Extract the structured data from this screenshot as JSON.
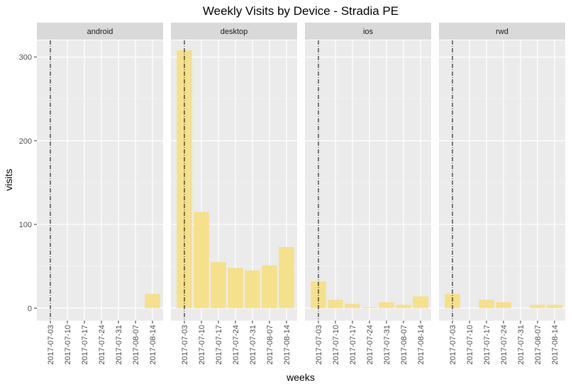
{
  "chart_data": {
    "type": "bar",
    "title": "Weekly Visits by Device - Stradia PE",
    "xlabel": "weeks",
    "ylabel": "visits",
    "ylim": [
      -15,
      320
    ],
    "yticks": [
      0,
      100,
      200,
      300
    ],
    "grid": true,
    "legend": "none",
    "bar_color": "#f5e08c",
    "panel_background": "#ebebeb",
    "strip_background": "#d9d9d9",
    "reference_line": {
      "x": "2017-07-03",
      "style": "dot-dash",
      "color": "#000000"
    },
    "categories": [
      "2017-07-03",
      "2017-07-10",
      "2017-07-17",
      "2017-07-24",
      "2017-07-31",
      "2017-08-07",
      "2017-08-14"
    ],
    "facets": [
      {
        "name": "android",
        "values": [
          0,
          0,
          0,
          0,
          0,
          0,
          17
        ]
      },
      {
        "name": "desktop",
        "values": [
          308,
          115,
          55,
          48,
          45,
          51,
          73
        ]
      },
      {
        "name": "ios",
        "values": [
          32,
          10,
          5,
          1,
          7,
          4,
          14
        ]
      },
      {
        "name": "rwd",
        "values": [
          17,
          0,
          10,
          7,
          0,
          4,
          4
        ]
      }
    ]
  }
}
